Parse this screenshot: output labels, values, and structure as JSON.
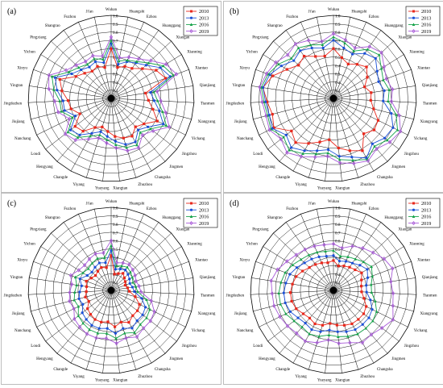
{
  "colors": {
    "2010": "#e8281c",
    "2013": "#1a4fd6",
    "2016": "#16a34a",
    "2019": "#a85ad8"
  },
  "cities": [
    "Wuhan",
    "Huangshi",
    "Ezhou",
    "Huanggang",
    "Xiaogan",
    "Xianning",
    "Xiantao",
    "Qianjiang",
    "Tianmen",
    "Xiangyang",
    "Yichang",
    "Jingzhou",
    "Jingmen",
    "Changsha",
    "Zhuzhou",
    "Xiangtan",
    "Yueyang",
    "Yiyang",
    "Changde",
    "Hengyang",
    "Loudi",
    "Nanchang",
    "Jiujiang",
    "Jingdezhen",
    "Yingtan",
    "Xinyu",
    "Yichun",
    "Pingxiang",
    "Shangrao",
    "Fuzhou",
    "Ji'an"
  ],
  "chart_data": [
    {
      "panel": "(a)",
      "type": "radar",
      "rlim": [
        0,
        1.0
      ],
      "ticks": [
        "0.1",
        "0.2",
        "0.3",
        "0.4",
        "0.5",
        "0.6",
        "0.7",
        "0.8",
        "0.9",
        "1.0"
      ],
      "legend": [
        "2010",
        "2013",
        "2016",
        "2019"
      ],
      "legend_position": "top-right",
      "series": [
        {
          "name": "2010",
          "values": [
            0.6,
            0.38,
            0.42,
            0.44,
            0.52,
            0.64,
            0.7,
            0.42,
            0.45,
            0.52,
            0.62,
            0.5,
            0.45,
            0.52,
            0.5,
            0.46,
            0.4,
            0.36,
            0.4,
            0.52,
            0.55,
            0.42,
            0.5,
            0.52,
            0.6,
            0.66,
            0.5,
            0.44,
            0.4,
            0.42,
            0.38
          ]
        },
        {
          "name": "2013",
          "values": [
            0.66,
            0.42,
            0.48,
            0.52,
            0.58,
            0.7,
            0.76,
            0.48,
            0.52,
            0.6,
            0.7,
            0.56,
            0.5,
            0.6,
            0.58,
            0.52,
            0.46,
            0.42,
            0.48,
            0.58,
            0.62,
            0.48,
            0.58,
            0.58,
            0.66,
            0.72,
            0.56,
            0.5,
            0.46,
            0.48,
            0.44
          ]
        },
        {
          "name": "2016",
          "values": [
            0.7,
            0.46,
            0.5,
            0.54,
            0.62,
            0.74,
            0.8,
            0.52,
            0.56,
            0.64,
            0.74,
            0.6,
            0.54,
            0.64,
            0.62,
            0.56,
            0.5,
            0.46,
            0.52,
            0.62,
            0.66,
            0.52,
            0.62,
            0.62,
            0.7,
            0.76,
            0.6,
            0.54,
            0.5,
            0.52,
            0.48
          ]
        },
        {
          "name": "2019",
          "values": [
            0.74,
            0.5,
            0.54,
            0.58,
            0.66,
            0.78,
            0.84,
            0.56,
            0.6,
            0.68,
            0.78,
            0.64,
            0.58,
            0.68,
            0.66,
            0.6,
            0.54,
            0.5,
            0.56,
            0.66,
            0.7,
            0.56,
            0.66,
            0.68,
            0.76,
            0.8,
            0.64,
            0.58,
            0.54,
            0.56,
            0.52
          ]
        }
      ]
    },
    {
      "panel": "(b)",
      "type": "radar",
      "rlim": [
        0,
        1.0
      ],
      "ticks": [
        "0.1",
        "0.2",
        "0.3",
        "0.4",
        "0.5",
        "0.6",
        "0.7",
        "0.8",
        "0.9",
        "1.0"
      ],
      "legend": [
        "2010",
        "2013",
        "2016",
        "2019"
      ],
      "legend_position": "top-right",
      "series": [
        {
          "name": "2010",
          "values": [
            0.6,
            0.5,
            0.45,
            0.5,
            0.55,
            0.48,
            0.4,
            0.46,
            0.45,
            0.5,
            0.6,
            0.62,
            0.56,
            0.72,
            0.66,
            0.6,
            0.5,
            0.55,
            0.62,
            0.7,
            0.64,
            0.8,
            0.76,
            0.8,
            0.86,
            0.78,
            0.66,
            0.58,
            0.62,
            0.55,
            0.52
          ]
        },
        {
          "name": "2013",
          "values": [
            0.7,
            0.62,
            0.58,
            0.66,
            0.7,
            0.62,
            0.58,
            0.62,
            0.6,
            0.72,
            0.8,
            0.78,
            0.72,
            0.82,
            0.74,
            0.7,
            0.62,
            0.66,
            0.72,
            0.78,
            0.72,
            0.82,
            0.8,
            0.82,
            0.86,
            0.82,
            0.74,
            0.66,
            0.7,
            0.66,
            0.62
          ]
        },
        {
          "name": "2016",
          "values": [
            0.74,
            0.68,
            0.62,
            0.72,
            0.76,
            0.68,
            0.64,
            0.68,
            0.66,
            0.78,
            0.86,
            0.82,
            0.76,
            0.84,
            0.78,
            0.74,
            0.66,
            0.7,
            0.76,
            0.82,
            0.76,
            0.84,
            0.82,
            0.84,
            0.88,
            0.84,
            0.78,
            0.7,
            0.74,
            0.7,
            0.66
          ]
        },
        {
          "name": "2019",
          "values": [
            0.78,
            0.72,
            0.66,
            0.76,
            0.8,
            0.72,
            0.68,
            0.72,
            0.7,
            0.82,
            0.9,
            0.86,
            0.8,
            0.86,
            0.82,
            0.78,
            0.7,
            0.74,
            0.8,
            0.86,
            0.8,
            0.86,
            0.84,
            0.86,
            0.9,
            0.86,
            0.82,
            0.76,
            0.8,
            0.76,
            0.7
          ]
        }
      ]
    },
    {
      "panel": "(c)",
      "type": "radar",
      "rlim": [
        0,
        1.0
      ],
      "ticks": [
        "0.1",
        "0.2",
        "0.3",
        "0.4",
        "0.5",
        "0.6",
        "0.7",
        "0.8",
        "0.9",
        "1.0"
      ],
      "legend": [
        "2010",
        "2013",
        "2016",
        "2019"
      ],
      "legend_position": "top-right",
      "series": [
        {
          "name": "2010",
          "values": [
            0.42,
            0.2,
            0.22,
            0.25,
            0.22,
            0.2,
            0.18,
            0.2,
            0.22,
            0.3,
            0.38,
            0.4,
            0.4,
            0.44,
            0.4,
            0.44,
            0.38,
            0.4,
            0.4,
            0.38,
            0.36,
            0.3,
            0.32,
            0.3,
            0.3,
            0.32,
            0.28,
            0.26,
            0.28,
            0.3,
            0.28
          ]
        },
        {
          "name": "2013",
          "values": [
            0.48,
            0.26,
            0.28,
            0.3,
            0.28,
            0.26,
            0.24,
            0.26,
            0.28,
            0.38,
            0.46,
            0.48,
            0.48,
            0.52,
            0.48,
            0.52,
            0.46,
            0.48,
            0.48,
            0.46,
            0.44,
            0.38,
            0.4,
            0.38,
            0.36,
            0.4,
            0.34,
            0.32,
            0.34,
            0.36,
            0.34
          ]
        },
        {
          "name": "2016",
          "values": [
            0.54,
            0.3,
            0.32,
            0.34,
            0.32,
            0.3,
            0.28,
            0.3,
            0.32,
            0.44,
            0.52,
            0.54,
            0.54,
            0.58,
            0.54,
            0.58,
            0.52,
            0.54,
            0.54,
            0.52,
            0.5,
            0.44,
            0.46,
            0.44,
            0.42,
            0.46,
            0.4,
            0.38,
            0.4,
            0.42,
            0.4
          ]
        },
        {
          "name": "2019",
          "values": [
            0.6,
            0.34,
            0.36,
            0.38,
            0.36,
            0.34,
            0.32,
            0.34,
            0.36,
            0.5,
            0.58,
            0.6,
            0.6,
            0.64,
            0.6,
            0.64,
            0.58,
            0.6,
            0.6,
            0.58,
            0.56,
            0.5,
            0.52,
            0.5,
            0.48,
            0.52,
            0.46,
            0.44,
            0.46,
            0.48,
            0.46
          ]
        }
      ]
    },
    {
      "panel": "(d)",
      "type": "radar",
      "rlim": [
        0,
        1.0
      ],
      "ticks": [
        "0.1",
        "0.2",
        "0.3",
        "0.4",
        "0.5",
        "0.6",
        "0.7",
        "0.8",
        "0.9",
        "1.0"
      ],
      "legend": [
        "2010",
        "2013",
        "2016",
        "2019"
      ],
      "legend_position": "top-right",
      "series": [
        {
          "name": "2010",
          "values": [
            0.36,
            0.3,
            0.32,
            0.34,
            0.36,
            0.4,
            0.36,
            0.34,
            0.34,
            0.38,
            0.44,
            0.46,
            0.46,
            0.46,
            0.44,
            0.42,
            0.4,
            0.44,
            0.46,
            0.44,
            0.46,
            0.5,
            0.52,
            0.52,
            0.5,
            0.48,
            0.44,
            0.4,
            0.38,
            0.36,
            0.34
          ]
        },
        {
          "name": "2013",
          "values": [
            0.42,
            0.36,
            0.38,
            0.4,
            0.44,
            0.48,
            0.44,
            0.4,
            0.4,
            0.46,
            0.52,
            0.54,
            0.54,
            0.54,
            0.52,
            0.5,
            0.48,
            0.52,
            0.54,
            0.52,
            0.54,
            0.58,
            0.6,
            0.6,
            0.58,
            0.56,
            0.52,
            0.48,
            0.46,
            0.44,
            0.42
          ]
        },
        {
          "name": "2016",
          "values": [
            0.48,
            0.42,
            0.44,
            0.46,
            0.5,
            0.54,
            0.5,
            0.46,
            0.46,
            0.52,
            0.58,
            0.6,
            0.6,
            0.6,
            0.58,
            0.56,
            0.54,
            0.58,
            0.6,
            0.58,
            0.6,
            0.64,
            0.66,
            0.66,
            0.64,
            0.62,
            0.58,
            0.54,
            0.52,
            0.5,
            0.48
          ]
        },
        {
          "name": "2019",
          "values": [
            0.56,
            0.52,
            0.58,
            0.62,
            0.66,
            0.72,
            0.76,
            0.7,
            0.72,
            0.74,
            0.8,
            0.74,
            0.7,
            0.72,
            0.66,
            0.64,
            0.6,
            0.66,
            0.7,
            0.68,
            0.7,
            0.72,
            0.74,
            0.74,
            0.76,
            0.72,
            0.66,
            0.62,
            0.6,
            0.58,
            0.56
          ]
        }
      ]
    }
  ]
}
